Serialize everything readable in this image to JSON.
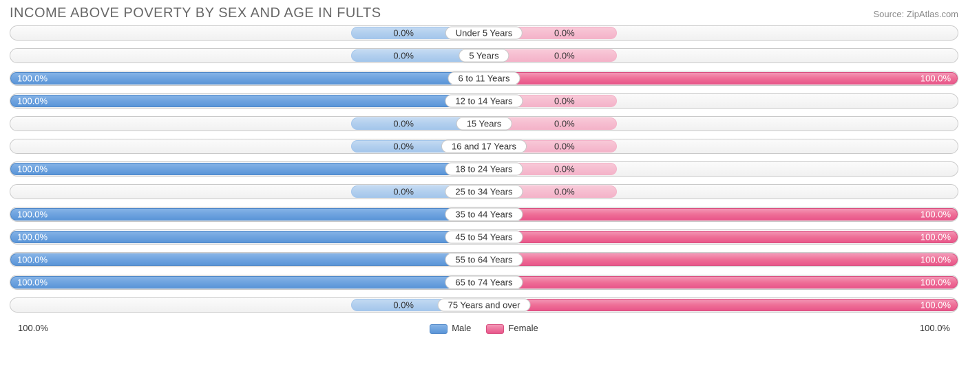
{
  "title": "INCOME ABOVE POVERTY BY SEX AND AGE IN FULTS",
  "source": "Source: ZipAtlas.com",
  "colors": {
    "male_full": "#5a95d8",
    "male_short": "#a4c6eb",
    "female_full": "#e9568a",
    "female_short": "#f4b3c9",
    "track_border": "#c9c9c9",
    "text_dark": "#333333",
    "text_title": "#686868"
  },
  "chart": {
    "type": "diverging-bar",
    "short_bar_pct": 14,
    "rows": [
      {
        "label": "Under 5 Years",
        "male": 0,
        "female": 0
      },
      {
        "label": "5 Years",
        "male": 0,
        "female": 0
      },
      {
        "label": "6 to 11 Years",
        "male": 100,
        "female": 100
      },
      {
        "label": "12 to 14 Years",
        "male": 100,
        "female": 0
      },
      {
        "label": "15 Years",
        "male": 0,
        "female": 0
      },
      {
        "label": "16 and 17 Years",
        "male": 0,
        "female": 0
      },
      {
        "label": "18 to 24 Years",
        "male": 100,
        "female": 0
      },
      {
        "label": "25 to 34 Years",
        "male": 0,
        "female": 0
      },
      {
        "label": "35 to 44 Years",
        "male": 100,
        "female": 100
      },
      {
        "label": "45 to 54 Years",
        "male": 100,
        "female": 100
      },
      {
        "label": "55 to 64 Years",
        "male": 100,
        "female": 100
      },
      {
        "label": "65 to 74 Years",
        "male": 100,
        "female": 100
      },
      {
        "label": "75 Years and over",
        "male": 0,
        "female": 100
      }
    ]
  },
  "legend": {
    "male": "Male",
    "female": "Female"
  },
  "axis": {
    "left": "100.0%",
    "right": "100.0%"
  }
}
